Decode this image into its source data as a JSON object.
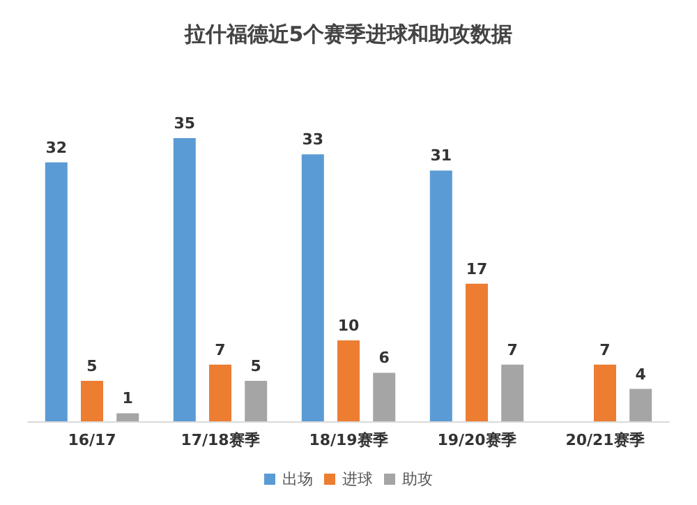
{
  "chart_data": {
    "type": "bar",
    "title": "拉什福德近5个赛季进球和助攻数据",
    "categories": [
      "16/17",
      "17/18赛季",
      "18/19赛季",
      "19/20赛季",
      "20/21赛季"
    ],
    "series": [
      {
        "name": "出场",
        "color": "#5b9bd5",
        "values": [
          32,
          35,
          33,
          31,
          null
        ]
      },
      {
        "name": "进球",
        "color": "#ed7d31",
        "values": [
          5,
          7,
          10,
          17,
          7
        ]
      },
      {
        "name": "助攻",
        "color": "#a5a5a5",
        "values": [
          1,
          5,
          6,
          7,
          4
        ]
      }
    ],
    "data_labels": true,
    "legend": "bottom"
  }
}
